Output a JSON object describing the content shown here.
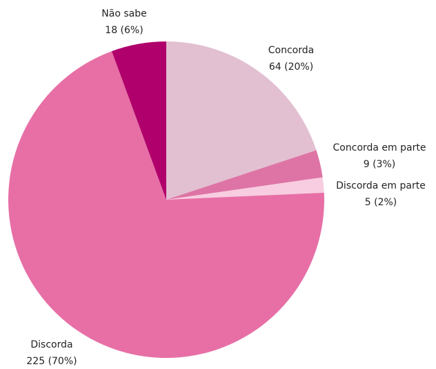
{
  "chart_data": {
    "type": "pie",
    "categories": [
      "Concorda",
      "Concorda em parte",
      "Discorda em parte",
      "Discorda",
      "Não sabe"
    ],
    "values": [
      64,
      9,
      5,
      225,
      18
    ],
    "value_labels": [
      "64 (20%)",
      "9 (3%)",
      "5 (2%)",
      "225 (70%)",
      "18 (6%)"
    ],
    "colors": [
      "#e2c0d1",
      "#de74a5",
      "#f8cde1",
      "#e76fa6",
      "#b0006b"
    ]
  }
}
